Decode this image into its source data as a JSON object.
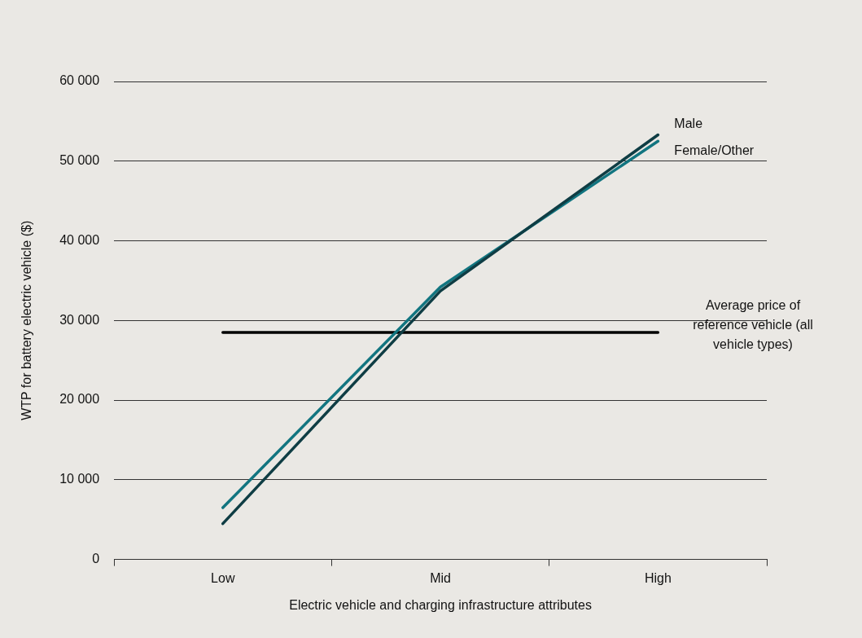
{
  "chart_data": {
    "type": "line",
    "xlabel": "Electric vehicle and charging infrastructure attributes",
    "ylabel": "WTP for battery electric vehicle ($)",
    "categories": [
      "Low",
      "Mid",
      "High"
    ],
    "series": [
      {
        "name": "Male",
        "color": "#0f3d44",
        "values": [
          4500,
          33700,
          53300
        ]
      },
      {
        "name": "Female/Other",
        "color": "#127580",
        "values": [
          6500,
          34200,
          52500
        ]
      }
    ],
    "ylim": [
      0,
      60000
    ],
    "yticks": [
      {
        "value": 0,
        "label": "0"
      },
      {
        "value": 10000,
        "label": "10 000"
      },
      {
        "value": 20000,
        "label": "20 000"
      },
      {
        "value": 30000,
        "label": "30 000"
      },
      {
        "value": 40000,
        "label": "40 000"
      },
      {
        "value": 50000,
        "label": "50 000"
      },
      {
        "value": 60000,
        "label": "60 000"
      }
    ],
    "ref_lines": [
      {
        "axis": "y",
        "value": 28500,
        "label": "Average price of reference vehicle (all vehicle types)",
        "color": "#000000"
      }
    ],
    "grid": "y",
    "legend": false,
    "marker": "none",
    "line_style": "solid"
  }
}
